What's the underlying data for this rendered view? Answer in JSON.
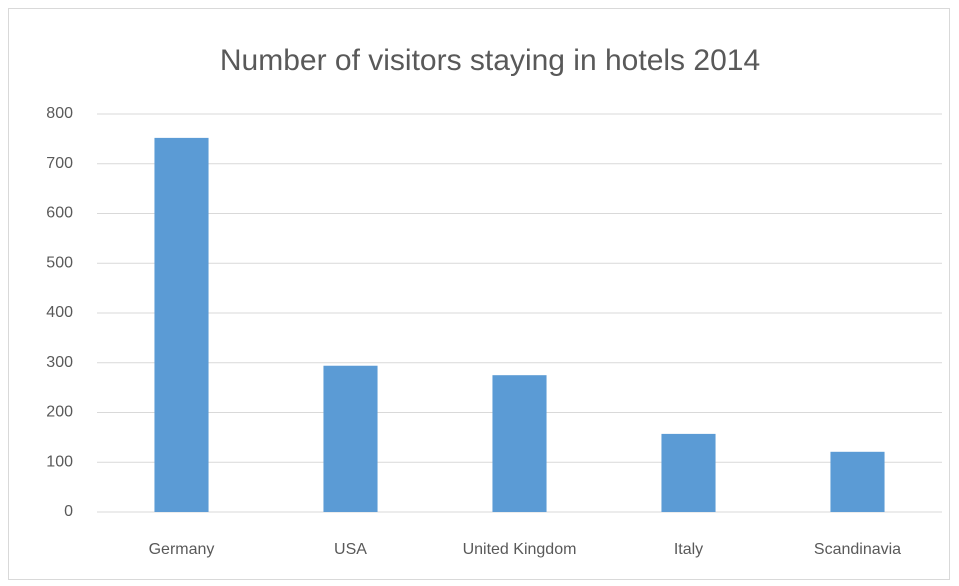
{
  "chart_data": {
    "type": "bar",
    "title": "Number of visitors staying in hotels 2014",
    "categories": [
      "Germany",
      "USA",
      "United Kingdom",
      "Italy",
      "Scandinavia"
    ],
    "values": [
      752,
      294,
      275,
      157,
      121
    ],
    "color": "#5b9bd5",
    "ylim": [
      0,
      800
    ],
    "yticks": [
      0,
      100,
      200,
      300,
      400,
      500,
      600,
      700,
      800
    ],
    "grid": true
  }
}
